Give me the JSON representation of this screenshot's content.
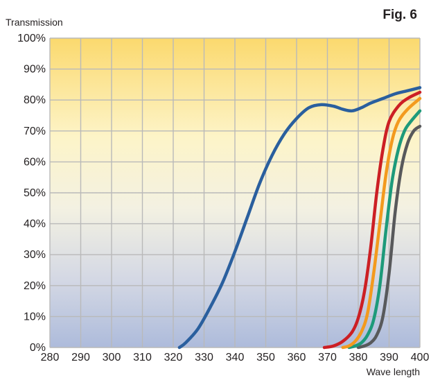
{
  "chart_data": {
    "type": "line",
    "title": "",
    "figure_label": "Fig. 6",
    "xlabel": "Wave length",
    "ylabel": "Transmission",
    "xlim": [
      280,
      400
    ],
    "ylim": [
      0,
      100
    ],
    "grid": true,
    "x_ticks": [
      "280",
      "290",
      "300",
      "310",
      "320",
      "330",
      "340",
      "350",
      "360",
      "370",
      "380",
      "390",
      "400"
    ],
    "y_ticks": [
      "0%",
      "10%",
      "20%",
      "30%",
      "40%",
      "50%",
      "60%",
      "70%",
      "80%",
      "90%",
      "100%"
    ],
    "series": [
      {
        "color": "#2a5f9e",
        "x": [
          322,
          324,
          328,
          332,
          336,
          340,
          344,
          348,
          352,
          356,
          360,
          364,
          368,
          372,
          375,
          378,
          381,
          384,
          388,
          392,
          396,
          400
        ],
        "y": [
          0,
          1.5,
          6,
          13,
          21,
          31,
          42,
          53,
          62,
          69,
          74,
          77.5,
          78.5,
          78,
          77,
          76.5,
          77.5,
          79,
          80.5,
          82,
          83,
          84
        ]
      },
      {
        "color": "#cc1f24",
        "x": [
          369,
          372,
          375,
          378,
          380,
          382,
          384,
          386,
          388,
          390,
          393,
          396,
          400
        ],
        "y": [
          0,
          0.5,
          2,
          5,
          9.5,
          18,
          32,
          50,
          64,
          73,
          78,
          80.5,
          82.5
        ]
      },
      {
        "color": "#f39a1e",
        "x": [
          375,
          377,
          379,
          381,
          383,
          385,
          387,
          389,
          391,
          393,
          396,
          400
        ],
        "y": [
          0,
          0.5,
          2,
          5,
          11,
          24,
          40,
          56,
          67,
          73,
          77,
          80.5
        ]
      },
      {
        "color": "#1d9a7a",
        "x": [
          377,
          379,
          381,
          383,
          385,
          387,
          389,
          391,
          393,
          395,
          397,
          400
        ],
        "y": [
          0,
          0.5,
          1.5,
          4,
          9,
          20,
          38,
          54,
          64,
          70,
          73,
          76.5
        ]
      },
      {
        "color": "#58595b",
        "x": [
          380,
          382,
          384,
          386,
          388,
          390,
          392,
          394,
          396,
          398,
          400
        ],
        "y": [
          0,
          0.5,
          1.5,
          4,
          10,
          24,
          44,
          58,
          66,
          70,
          71.5
        ]
      }
    ]
  }
}
